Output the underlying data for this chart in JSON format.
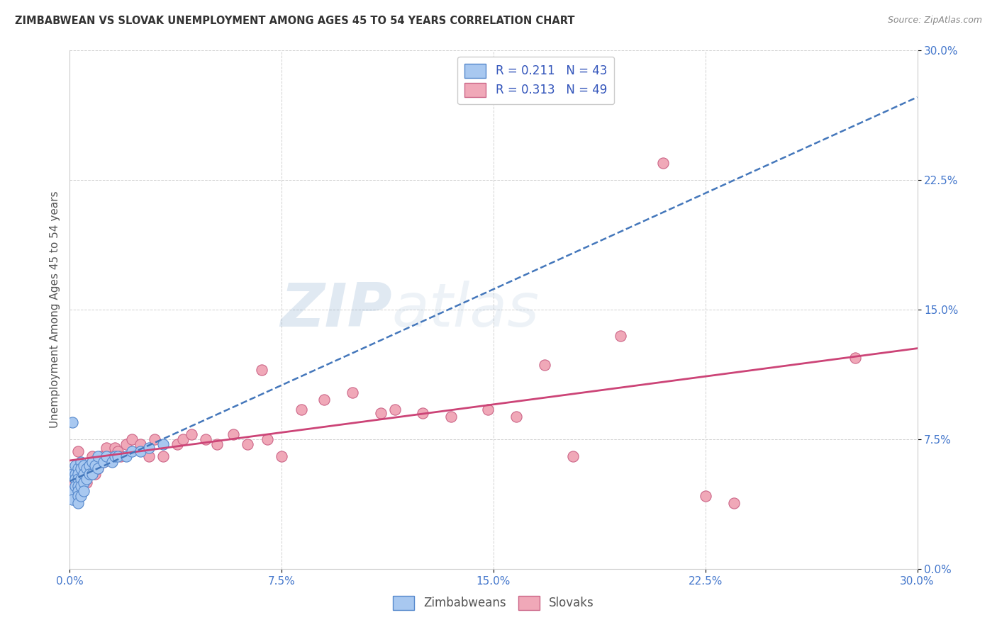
{
  "title": "ZIMBABWEAN VS SLOVAK UNEMPLOYMENT AMONG AGES 45 TO 54 YEARS CORRELATION CHART",
  "source": "Source: ZipAtlas.com",
  "ylabel": "Unemployment Among Ages 45 to 54 years",
  "xlim": [
    0.0,
    0.3
  ],
  "ylim": [
    0.0,
    0.3
  ],
  "xticks": [
    0.0,
    0.075,
    0.15,
    0.225,
    0.3
  ],
  "yticks": [
    0.0,
    0.075,
    0.15,
    0.225,
    0.3
  ],
  "xticklabels": [
    "0.0%",
    "7.5%",
    "15.0%",
    "22.5%",
    "30.0%"
  ],
  "yticklabels": [
    "0.0%",
    "7.5%",
    "15.0%",
    "22.5%",
    "30.0%"
  ],
  "zimbabwe_color": "#a8c8f0",
  "slovak_color": "#f0a8b8",
  "zimbabwe_edge": "#5588cc",
  "slovak_edge": "#cc6688",
  "trendline_zim_color": "#4477bb",
  "trendline_slo_color": "#cc4477",
  "legend_R_zim": "R = 0.211",
  "legend_N_zim": "N = 43",
  "legend_R_slo": "R = 0.313",
  "legend_N_slo": "N = 49",
  "legend_text_color": "#3355bb",
  "watermark_zip": "ZIP",
  "watermark_atlas": "atlas",
  "background_color": "#ffffff",
  "zimbabwe_x": [
    0.001,
    0.001,
    0.001,
    0.002,
    0.002,
    0.002,
    0.002,
    0.003,
    0.003,
    0.003,
    0.003,
    0.003,
    0.003,
    0.003,
    0.004,
    0.004,
    0.004,
    0.004,
    0.004,
    0.005,
    0.005,
    0.005,
    0.005,
    0.006,
    0.006,
    0.007,
    0.007,
    0.008,
    0.008,
    0.009,
    0.01,
    0.01,
    0.012,
    0.013,
    0.015,
    0.016,
    0.017,
    0.02,
    0.022,
    0.025,
    0.028,
    0.033,
    0.001
  ],
  "zimbabwe_y": [
    0.055,
    0.045,
    0.04,
    0.06,
    0.055,
    0.052,
    0.048,
    0.058,
    0.055,
    0.052,
    0.048,
    0.045,
    0.042,
    0.038,
    0.062,
    0.058,
    0.052,
    0.048,
    0.042,
    0.06,
    0.055,
    0.05,
    0.045,
    0.058,
    0.052,
    0.06,
    0.055,
    0.062,
    0.055,
    0.06,
    0.065,
    0.058,
    0.062,
    0.065,
    0.062,
    0.065,
    0.065,
    0.065,
    0.068,
    0.068,
    0.07,
    0.072,
    0.085
  ],
  "slovak_x": [
    0.001,
    0.001,
    0.003,
    0.003,
    0.005,
    0.006,
    0.007,
    0.008,
    0.009,
    0.01,
    0.011,
    0.012,
    0.013,
    0.015,
    0.016,
    0.017,
    0.018,
    0.02,
    0.022,
    0.025,
    0.028,
    0.03,
    0.033,
    0.038,
    0.04,
    0.043,
    0.048,
    0.052,
    0.058,
    0.063,
    0.07,
    0.075,
    0.082,
    0.09,
    0.1,
    0.11,
    0.115,
    0.125,
    0.135,
    0.148,
    0.158,
    0.168,
    0.178,
    0.195,
    0.21,
    0.225,
    0.235,
    0.278,
    0.068
  ],
  "slovak_y": [
    0.048,
    0.042,
    0.068,
    0.06,
    0.055,
    0.05,
    0.058,
    0.065,
    0.055,
    0.058,
    0.065,
    0.062,
    0.07,
    0.065,
    0.07,
    0.068,
    0.065,
    0.072,
    0.075,
    0.072,
    0.065,
    0.075,
    0.065,
    0.072,
    0.075,
    0.078,
    0.075,
    0.072,
    0.078,
    0.072,
    0.075,
    0.065,
    0.092,
    0.098,
    0.102,
    0.09,
    0.092,
    0.09,
    0.088,
    0.092,
    0.088,
    0.118,
    0.065,
    0.135,
    0.235,
    0.042,
    0.038,
    0.122,
    0.115
  ]
}
